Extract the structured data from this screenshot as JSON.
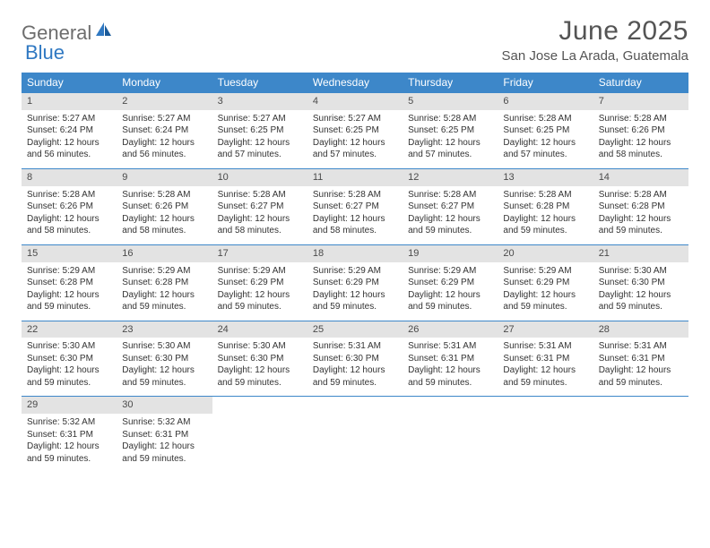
{
  "logo": {
    "part1": "General",
    "part2": "Blue"
  },
  "title": "June 2025",
  "location": "San Jose La Arada, Guatemala",
  "colors": {
    "header_bg": "#3d87c9",
    "daynum_bg": "#e3e3e3",
    "logo_gray": "#6d6d6d",
    "logo_blue": "#2f78c2",
    "text": "#545454"
  },
  "dayNames": [
    "Sunday",
    "Monday",
    "Tuesday",
    "Wednesday",
    "Thursday",
    "Friday",
    "Saturday"
  ],
  "weeks": [
    [
      {
        "n": "1",
        "sr": "Sunrise: 5:27 AM",
        "ss": "Sunset: 6:24 PM",
        "dl": "Daylight: 12 hours and 56 minutes."
      },
      {
        "n": "2",
        "sr": "Sunrise: 5:27 AM",
        "ss": "Sunset: 6:24 PM",
        "dl": "Daylight: 12 hours and 56 minutes."
      },
      {
        "n": "3",
        "sr": "Sunrise: 5:27 AM",
        "ss": "Sunset: 6:25 PM",
        "dl": "Daylight: 12 hours and 57 minutes."
      },
      {
        "n": "4",
        "sr": "Sunrise: 5:27 AM",
        "ss": "Sunset: 6:25 PM",
        "dl": "Daylight: 12 hours and 57 minutes."
      },
      {
        "n": "5",
        "sr": "Sunrise: 5:28 AM",
        "ss": "Sunset: 6:25 PM",
        "dl": "Daylight: 12 hours and 57 minutes."
      },
      {
        "n": "6",
        "sr": "Sunrise: 5:28 AM",
        "ss": "Sunset: 6:25 PM",
        "dl": "Daylight: 12 hours and 57 minutes."
      },
      {
        "n": "7",
        "sr": "Sunrise: 5:28 AM",
        "ss": "Sunset: 6:26 PM",
        "dl": "Daylight: 12 hours and 58 minutes."
      }
    ],
    [
      {
        "n": "8",
        "sr": "Sunrise: 5:28 AM",
        "ss": "Sunset: 6:26 PM",
        "dl": "Daylight: 12 hours and 58 minutes."
      },
      {
        "n": "9",
        "sr": "Sunrise: 5:28 AM",
        "ss": "Sunset: 6:26 PM",
        "dl": "Daylight: 12 hours and 58 minutes."
      },
      {
        "n": "10",
        "sr": "Sunrise: 5:28 AM",
        "ss": "Sunset: 6:27 PM",
        "dl": "Daylight: 12 hours and 58 minutes."
      },
      {
        "n": "11",
        "sr": "Sunrise: 5:28 AM",
        "ss": "Sunset: 6:27 PM",
        "dl": "Daylight: 12 hours and 58 minutes."
      },
      {
        "n": "12",
        "sr": "Sunrise: 5:28 AM",
        "ss": "Sunset: 6:27 PM",
        "dl": "Daylight: 12 hours and 59 minutes."
      },
      {
        "n": "13",
        "sr": "Sunrise: 5:28 AM",
        "ss": "Sunset: 6:28 PM",
        "dl": "Daylight: 12 hours and 59 minutes."
      },
      {
        "n": "14",
        "sr": "Sunrise: 5:28 AM",
        "ss": "Sunset: 6:28 PM",
        "dl": "Daylight: 12 hours and 59 minutes."
      }
    ],
    [
      {
        "n": "15",
        "sr": "Sunrise: 5:29 AM",
        "ss": "Sunset: 6:28 PM",
        "dl": "Daylight: 12 hours and 59 minutes."
      },
      {
        "n": "16",
        "sr": "Sunrise: 5:29 AM",
        "ss": "Sunset: 6:28 PM",
        "dl": "Daylight: 12 hours and 59 minutes."
      },
      {
        "n": "17",
        "sr": "Sunrise: 5:29 AM",
        "ss": "Sunset: 6:29 PM",
        "dl": "Daylight: 12 hours and 59 minutes."
      },
      {
        "n": "18",
        "sr": "Sunrise: 5:29 AM",
        "ss": "Sunset: 6:29 PM",
        "dl": "Daylight: 12 hours and 59 minutes."
      },
      {
        "n": "19",
        "sr": "Sunrise: 5:29 AM",
        "ss": "Sunset: 6:29 PM",
        "dl": "Daylight: 12 hours and 59 minutes."
      },
      {
        "n": "20",
        "sr": "Sunrise: 5:29 AM",
        "ss": "Sunset: 6:29 PM",
        "dl": "Daylight: 12 hours and 59 minutes."
      },
      {
        "n": "21",
        "sr": "Sunrise: 5:30 AM",
        "ss": "Sunset: 6:30 PM",
        "dl": "Daylight: 12 hours and 59 minutes."
      }
    ],
    [
      {
        "n": "22",
        "sr": "Sunrise: 5:30 AM",
        "ss": "Sunset: 6:30 PM",
        "dl": "Daylight: 12 hours and 59 minutes."
      },
      {
        "n": "23",
        "sr": "Sunrise: 5:30 AM",
        "ss": "Sunset: 6:30 PM",
        "dl": "Daylight: 12 hours and 59 minutes."
      },
      {
        "n": "24",
        "sr": "Sunrise: 5:30 AM",
        "ss": "Sunset: 6:30 PM",
        "dl": "Daylight: 12 hours and 59 minutes."
      },
      {
        "n": "25",
        "sr": "Sunrise: 5:31 AM",
        "ss": "Sunset: 6:30 PM",
        "dl": "Daylight: 12 hours and 59 minutes."
      },
      {
        "n": "26",
        "sr": "Sunrise: 5:31 AM",
        "ss": "Sunset: 6:31 PM",
        "dl": "Daylight: 12 hours and 59 minutes."
      },
      {
        "n": "27",
        "sr": "Sunrise: 5:31 AM",
        "ss": "Sunset: 6:31 PM",
        "dl": "Daylight: 12 hours and 59 minutes."
      },
      {
        "n": "28",
        "sr": "Sunrise: 5:31 AM",
        "ss": "Sunset: 6:31 PM",
        "dl": "Daylight: 12 hours and 59 minutes."
      }
    ],
    [
      {
        "n": "29",
        "sr": "Sunrise: 5:32 AM",
        "ss": "Sunset: 6:31 PM",
        "dl": "Daylight: 12 hours and 59 minutes."
      },
      {
        "n": "30",
        "sr": "Sunrise: 5:32 AM",
        "ss": "Sunset: 6:31 PM",
        "dl": "Daylight: 12 hours and 59 minutes."
      },
      null,
      null,
      null,
      null,
      null
    ]
  ]
}
